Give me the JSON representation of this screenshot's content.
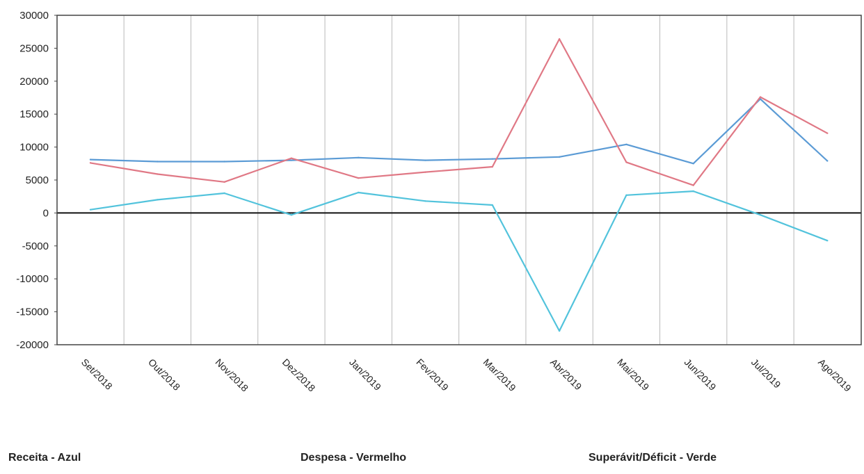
{
  "chart_data": {
    "type": "line",
    "categories": [
      "Set/2018",
      "Out/2018",
      "Nov/2018",
      "Dez/2018",
      "Jan/2019",
      "Fev/2019",
      "Mar/2019",
      "Abr/2019",
      "Mai/2019",
      "Jun/2019",
      "Jul/2019",
      "Ago/2019"
    ],
    "ylim": [
      -20000,
      30000
    ],
    "yticks": [
      30000,
      25000,
      20000,
      15000,
      10000,
      5000,
      0,
      -5000,
      -10000,
      -15000,
      -20000
    ],
    "grid": {
      "vertical": true,
      "horizontal": false
    },
    "series": [
      {
        "name": "Receita",
        "color": "#5b9bd5",
        "values": [
          8100,
          7800,
          7800,
          8000,
          8400,
          8000,
          8200,
          8500,
          10400,
          7500,
          17300,
          7900
        ]
      },
      {
        "name": "Despesa",
        "color": "#e07885",
        "values": [
          7600,
          5900,
          4700,
          8300,
          5300,
          6200,
          7000,
          26400,
          7700,
          4200,
          17600,
          12100
        ]
      },
      {
        "name": "Superávit/Déficit",
        "color": "#52c3dc",
        "values": [
          500,
          2000,
          3000,
          -300,
          3100,
          1800,
          1200,
          -17900,
          2700,
          3300,
          -300,
          -4200
        ]
      }
    ]
  },
  "legend": {
    "receita": "Receita - Azul",
    "despesa": "Despesa - Vermelho",
    "superavit": "Superávit/Déficit - Verde"
  }
}
